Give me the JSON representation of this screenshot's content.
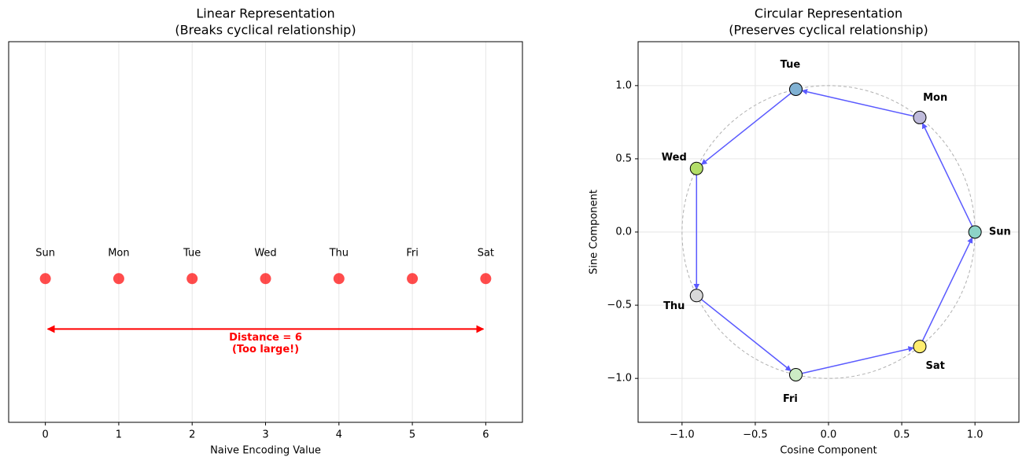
{
  "chart_data": [
    {
      "type": "scatter",
      "title": [
        "Linear Representation",
        "(Breaks cyclical relationship)"
      ],
      "xlabel": "Naive Encoding Value",
      "x": [
        0,
        1,
        2,
        3,
        4,
        5,
        6
      ],
      "values": [
        0,
        0,
        0,
        0,
        0,
        0,
        0
      ],
      "labels": [
        "Sun",
        "Mon",
        "Tue",
        "Wed",
        "Thu",
        "Fri",
        "Sat"
      ],
      "label_y": 0.1,
      "color": "#ff0000",
      "xlim": [
        -0.5,
        6.5
      ],
      "ylim": [
        -0.57,
        0.94
      ],
      "xticks": [
        0,
        1,
        2,
        3,
        4,
        5,
        6
      ],
      "grid": "x",
      "annotation": {
        "text": [
          "Distance = 6",
          "(Too large!)"
        ],
        "x": [
          0,
          6
        ],
        "y": -0.2,
        "color": "#ff0000"
      }
    },
    {
      "type": "cycle",
      "title": [
        "Circular Representation",
        "(Preserves cyclical relationship)"
      ],
      "xlabel": "Cosine Component",
      "ylabel": "Sine Component",
      "x": [
        1.0,
        0.623,
        -0.223,
        -0.901,
        -0.901,
        -0.223,
        0.623
      ],
      "values": [
        0.0,
        0.782,
        0.975,
        0.434,
        -0.434,
        -0.975,
        -0.782
      ],
      "labels": [
        "Sun",
        "Mon",
        "Tue",
        "Wed",
        "Thu",
        "Fri",
        "Sat"
      ],
      "colors": [
        "#8dd3c7",
        "#bebada",
        "#80b1d3",
        "#b3de69",
        "#d9d9d9",
        "#ccebc5",
        "#ffed6f"
      ],
      "arrow_color": "#5a5aff",
      "circle_radius": 1,
      "xlim": [
        -1.3,
        1.3
      ],
      "ylim": [
        -1.3,
        1.3
      ],
      "xticks": [
        {
          "value": -1,
          "label": "−1.0"
        },
        {
          "value": -0.5,
          "label": "−0.5"
        },
        {
          "value": 0,
          "label": "0.0"
        },
        {
          "value": 0.5,
          "label": "0.5"
        },
        {
          "value": 1,
          "label": "1.0"
        }
      ],
      "yticks": [
        {
          "value": -1,
          "label": "−1.0"
        },
        {
          "value": -0.5,
          "label": "−0.5"
        },
        {
          "value": 0,
          "label": "0.0"
        },
        {
          "value": 0.5,
          "label": "0.5"
        },
        {
          "value": 1,
          "label": "1.0"
        }
      ],
      "grid": "both"
    }
  ]
}
